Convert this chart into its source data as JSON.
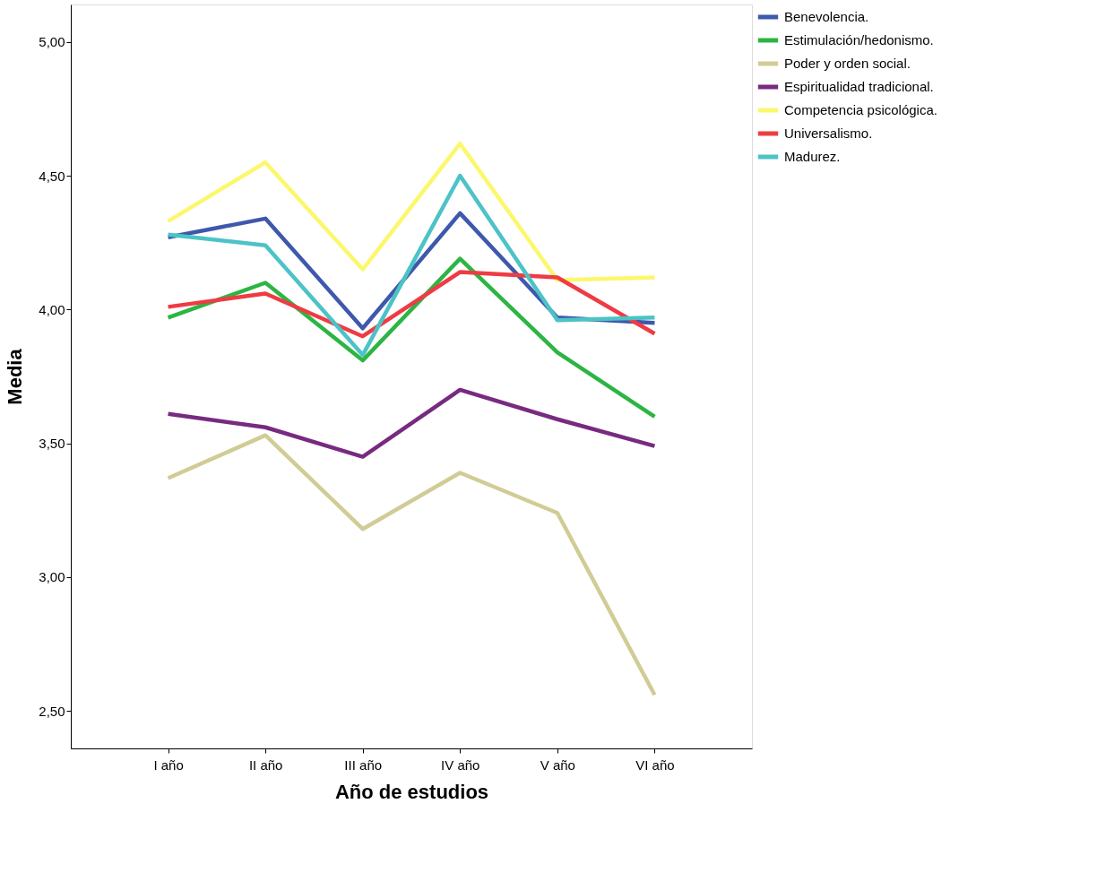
{
  "chart_data": {
    "type": "line",
    "xlabel": "Año de estudios",
    "ylabel": "Media",
    "categories": [
      "I año",
      "II año",
      "III año",
      "IV año",
      "V año",
      "VI año"
    ],
    "series": [
      {
        "name": "Benevolencia.",
        "color": "#3e58ac",
        "values": [
          4.27,
          4.34,
          3.93,
          4.36,
          3.97,
          3.95
        ]
      },
      {
        "name": "Estimulación/hedonismo.",
        "color": "#2cb543",
        "values": [
          3.97,
          4.1,
          3.81,
          4.19,
          3.84,
          3.6
        ]
      },
      {
        "name": "Poder y orden social.",
        "color": "#d1cc95",
        "values": [
          3.37,
          3.53,
          3.18,
          3.39,
          3.24,
          2.56
        ]
      },
      {
        "name": "Espiritualidad tradicional.",
        "color": "#782a80",
        "values": [
          3.61,
          3.56,
          3.45,
          3.7,
          3.59,
          3.49
        ]
      },
      {
        "name": "Competencia psicológica.",
        "color": "#fcf76c",
        "values": [
          4.33,
          4.55,
          4.15,
          4.62,
          4.11,
          4.12
        ]
      },
      {
        "name": "Universalismo.",
        "color": "#ef3b44",
        "values": [
          4.01,
          4.06,
          3.9,
          4.14,
          4.12,
          3.91
        ]
      },
      {
        "name": "Madurez.",
        "color": "#4cc3c6",
        "values": [
          4.28,
          4.24,
          3.83,
          4.5,
          3.96,
          3.97
        ]
      }
    ],
    "ylim": [
      2.36,
      5.14
    ],
    "yticks": [
      {
        "value": 2.5,
        "label": "2,50"
      },
      {
        "value": 3.0,
        "label": "3,00"
      },
      {
        "value": 3.5,
        "label": "3,50"
      },
      {
        "value": 4.0,
        "label": "4,00"
      },
      {
        "value": 4.5,
        "label": "4,50"
      },
      {
        "value": 5.0,
        "label": "5,00"
      }
    ],
    "grid": false,
    "legend": "top right",
    "marker": "none",
    "line_style": "solid"
  }
}
